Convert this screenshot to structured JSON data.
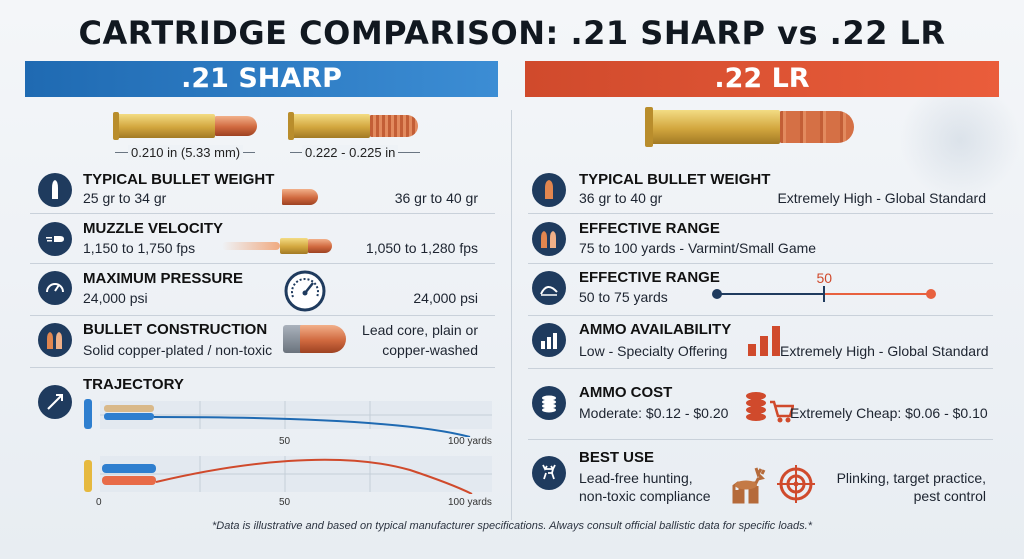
{
  "title": "CARTRIDGE COMPARISON: .21 SHARP vs .22 LR",
  "left": {
    "header": ".21 SHARP",
    "dims": {
      "a": "0.210 in (5.33 mm)",
      "b": "0.222 - 0.225 in"
    },
    "rows": [
      {
        "label": "TYPICAL BULLET WEIGHT",
        "value": "25 gr to 34 gr",
        "compare": "36 gr to 40 gr",
        "icon": "bullet-icon"
      },
      {
        "label": "MUZZLE VELOCITY",
        "value": "1,150 to 1,750 fps",
        "compare": "1,050 to 1,280 fps",
        "icon": "speed-bullet-icon"
      },
      {
        "label": "MAXIMUM PRESSURE",
        "value": "24,000 psi",
        "compare": "24,000 psi",
        "icon": "gauge-icon"
      },
      {
        "label": "BULLET CONSTRUCTION",
        "value": "Solid copper-plated / non-toxic",
        "compare_line1": "Lead core, plain or",
        "compare_line2": "copper-washed",
        "icon": "bullets-icon"
      },
      {
        "label": "TRAJECTORY",
        "icon": "trajectory-icon"
      }
    ],
    "trajectory": {
      "ticks_top": [
        "50",
        "100 yards"
      ],
      "ticks_bottom": [
        "0",
        "50",
        "100 yards"
      ]
    }
  },
  "right": {
    "header": ".22 LR",
    "rows": [
      {
        "label": "TYPICAL BULLET WEIGHT",
        "value": "36 gr to 40 gr",
        "compare": "Extremely High - Global Standard",
        "icon": "bullet-icon"
      },
      {
        "label": "EFFECTIVE RANGE",
        "value": "75 to 100 yards - Varmint/Small Game",
        "icon": "bullets-icon"
      },
      {
        "label": "EFFECTIVE RANGE",
        "value": "50 to 75 yards",
        "slider_value": "50",
        "slider_fraction": 0.5,
        "icon": "curve-icon"
      },
      {
        "label": "AMMO AVAILABILITY",
        "value": "Low - Specialty Offering",
        "compare": "Extremely High - Global Standard",
        "icon": "bar-chart-icon"
      },
      {
        "label": "AMMO COST",
        "value": "Moderate: $0.12 - $0.20",
        "compare": "Extremely Cheap: $0.06 - $0.10",
        "icon": "coins-icon"
      },
      {
        "label": "BEST USE",
        "value_line1": "Lead-free hunting,",
        "value_line2": "non-toxic compliance",
        "compare_line1": "Plinking, target practice,",
        "compare_line2": "pest control",
        "icon": "deer-icon"
      }
    ]
  },
  "colors": {
    "blue": "#1f6ab2",
    "red": "#d04a2c",
    "navy": "#1f3b5e"
  },
  "footnote": "*Data is illustrative and based on typical manufacturer specifications. Always consult official ballistic data for specific loads.*"
}
